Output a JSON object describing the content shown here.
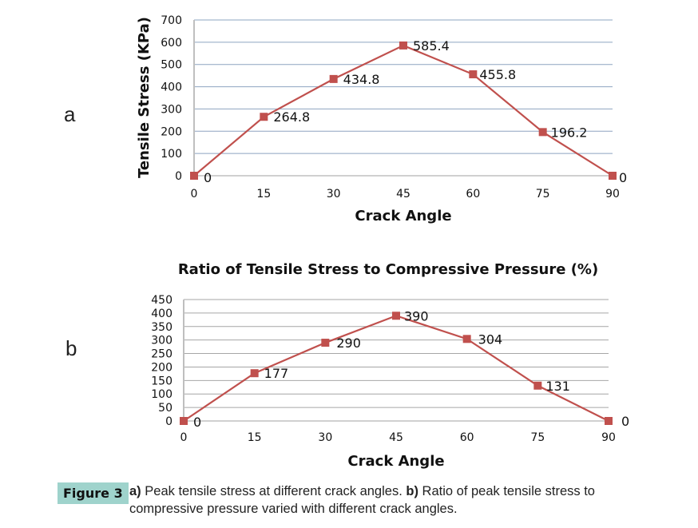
{
  "chart_data": [
    {
      "panel": "a",
      "type": "line",
      "title": "",
      "xlabel": "Crack Angle",
      "ylabel": "Tensile Stress (KPa)",
      "x": [
        0,
        15,
        30,
        45,
        60,
        75,
        90
      ],
      "values": [
        0,
        264.8,
        434.8,
        585.4,
        455.8,
        196.2,
        0
      ],
      "data_labels": [
        "0",
        "264.8",
        "434.8",
        "585.4",
        "455.8",
        "196.2",
        "0"
      ],
      "xticks": [
        "0",
        "15",
        "30",
        "45",
        "60",
        "75",
        "90"
      ],
      "yticks": [
        "0",
        "100",
        "200",
        "300",
        "400",
        "500",
        "600",
        "700"
      ],
      "ylim": [
        0,
        700
      ],
      "grid": true,
      "series_color": "#c0504d",
      "grid_color": "#8ea4c0"
    },
    {
      "panel": "b",
      "type": "line",
      "title": "Ratio of Tensile Stress to Compressive Pressure  (%)",
      "xlabel": "Crack Angle",
      "ylabel": "",
      "x": [
        0,
        15,
        30,
        45,
        60,
        75,
        90
      ],
      "values": [
        0,
        177,
        290,
        390,
        304,
        131,
        0
      ],
      "data_labels": [
        "0",
        "177",
        "290",
        "390",
        "304",
        "131",
        "0"
      ],
      "xticks": [
        "0",
        "15",
        "30",
        "45",
        "60",
        "75",
        "90"
      ],
      "yticks": [
        "0",
        "50",
        "100",
        "150",
        "200",
        "250",
        "300",
        "350",
        "400",
        "450"
      ],
      "ylim": [
        0,
        450
      ],
      "grid": true,
      "series_color": "#c0504d",
      "grid_color": "#a6a6a6"
    }
  ],
  "caption": {
    "badge": "Figure 3",
    "a_marker": "a)",
    "a_text": " Peak tensile stress at different crack angles. ",
    "b_marker": "b)",
    "b_text": " Ratio of peak tensile stress to compressive pressure varied with different crack angles."
  }
}
